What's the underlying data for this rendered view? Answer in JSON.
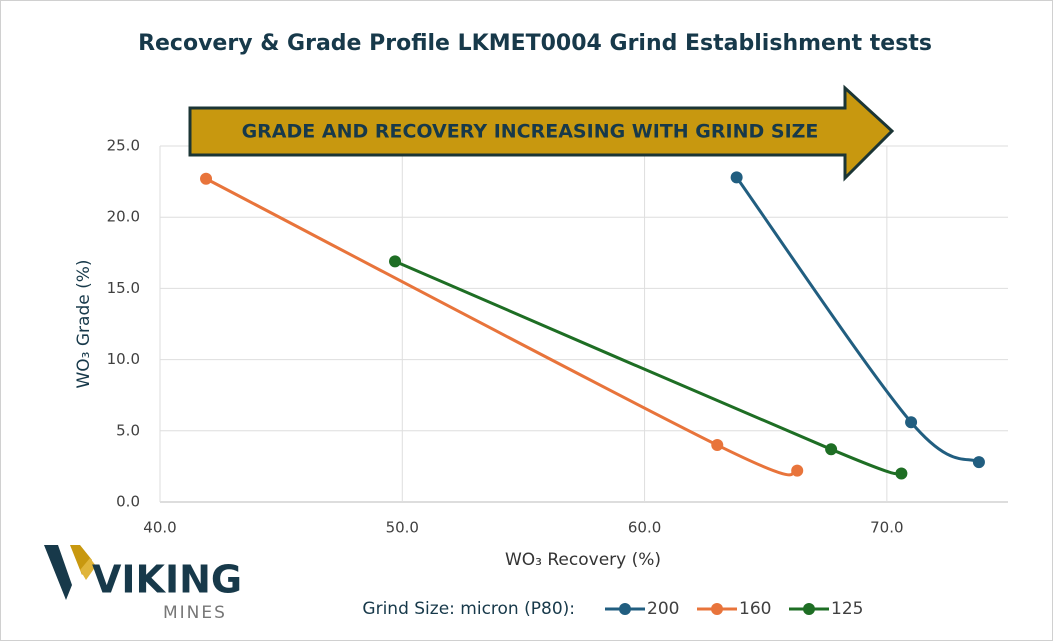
{
  "chart_data": {
    "type": "line",
    "title": "Recovery & Grade Profile LKMET0004 Grind Establishment tests",
    "annotation": "GRADE AND RECOVERY INCREASING WITH GRIND SIZE",
    "xlabel": "WO₃ Recovery (%)",
    "ylabel": "WO₃ Grade (%)",
    "legend_title": "Grind Size: micron (P80):",
    "xlim": [
      40,
      75
    ],
    "ylim": [
      0,
      25
    ],
    "xticks": [
      {
        "value": 40,
        "label": "40.0"
      },
      {
        "value": 50,
        "label": "50.0"
      },
      {
        "value": 60,
        "label": "60.0"
      },
      {
        "value": 70,
        "label": "70.0"
      }
    ],
    "yticks": [
      {
        "value": 0,
        "label": "0.0"
      },
      {
        "value": 5,
        "label": "5.0"
      },
      {
        "value": 10,
        "label": "10.0"
      },
      {
        "value": 15,
        "label": "15.0"
      },
      {
        "value": 20,
        "label": "20.0"
      },
      {
        "value": 25,
        "label": "25.0"
      }
    ],
    "grid": true,
    "legend": "bottom",
    "series": [
      {
        "name": "200",
        "color": "#215e80",
        "x": [
          63.8,
          71.0,
          73.8
        ],
        "values": [
          22.8,
          5.6,
          2.8
        ]
      },
      {
        "name": "160",
        "color": "#e8743b",
        "x": [
          41.9,
          63.0,
          66.3
        ],
        "values": [
          22.7,
          4.0,
          2.2
        ]
      },
      {
        "name": "125",
        "color": "#1e6e24",
        "x": [
          49.7,
          67.7,
          70.6
        ],
        "values": [
          16.9,
          3.7,
          2.0
        ]
      }
    ]
  },
  "logo": {
    "name": "VIKING",
    "tagline": "MINES"
  }
}
